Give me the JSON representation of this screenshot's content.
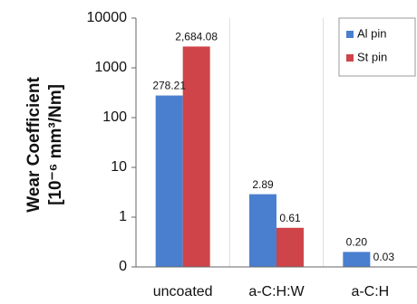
{
  "chart_data": {
    "type": "bar",
    "ylabel": [
      "Wear Coefficient",
      "[10⁻⁶ mm³/Nm]"
    ],
    "categories": [
      "uncoated",
      "a-C:H:W",
      "a-C:H"
    ],
    "series": [
      {
        "name": "Al pin",
        "color": "#4a7fd0",
        "values": [
          278.21,
          2.89,
          0.2
        ],
        "value_labels": [
          "278.21",
          "2.89",
          "0.20"
        ]
      },
      {
        "name": "St pin",
        "color": "#cf4448",
        "values": [
          2684.08,
          0.61,
          0.03
        ],
        "value_labels": [
          "2,684.08",
          "0.61",
          "0.03"
        ]
      }
    ],
    "log_scale": true,
    "ylim": [
      0.1,
      10000
    ],
    "yticks": [
      {
        "value": 0.1,
        "label": "0"
      },
      1,
      10,
      100,
      1000,
      10000
    ],
    "grid": true,
    "legend": "upper right"
  }
}
